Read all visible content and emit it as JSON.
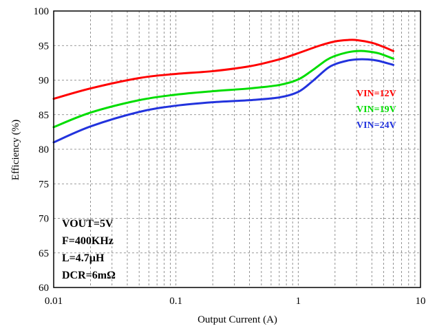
{
  "chart_data": {
    "type": "line",
    "xscale": "log",
    "xlim": [
      0.01,
      10
    ],
    "ylim": [
      60,
      100
    ],
    "xlabel": "Output Current (A)",
    "ylabel": "Efficiency (%)",
    "grid": true,
    "x_ticks": [
      "0.01",
      "0.1",
      "1",
      "10"
    ],
    "y_ticks": [
      "60",
      "65",
      "70",
      "75",
      "80",
      "85",
      "90",
      "95",
      "100"
    ],
    "series": [
      {
        "name": "VIN=12V",
        "color": "#ff0000",
        "x": [
          0.01,
          0.02,
          0.05,
          0.1,
          0.2,
          0.4,
          0.7,
          1.0,
          1.5,
          2.0,
          2.5,
          3.0,
          4.0,
          5.0,
          6.0
        ],
        "y": [
          87.3,
          88.8,
          90.3,
          90.9,
          91.3,
          92.0,
          93.0,
          93.9,
          95.0,
          95.6,
          95.8,
          95.8,
          95.4,
          94.8,
          94.2
        ]
      },
      {
        "name": "VIN=19V",
        "color": "#00dd00",
        "x": [
          0.01,
          0.02,
          0.05,
          0.1,
          0.2,
          0.4,
          0.7,
          1.0,
          1.3,
          1.7,
          2.0,
          2.5,
          3.0,
          3.5,
          4.5,
          6.0
        ],
        "y": [
          83.2,
          85.3,
          87.1,
          87.9,
          88.4,
          88.8,
          89.3,
          90.1,
          91.4,
          92.9,
          93.5,
          94.0,
          94.2,
          94.2,
          93.9,
          93.1
        ]
      },
      {
        "name": "VIN=24V",
        "color": "#2233dd",
        "x": [
          0.01,
          0.02,
          0.05,
          0.1,
          0.2,
          0.4,
          0.7,
          1.0,
          1.3,
          1.7,
          2.0,
          2.5,
          3.0,
          3.7,
          4.5,
          6.0
        ],
        "y": [
          81.0,
          83.3,
          85.4,
          86.3,
          86.8,
          87.1,
          87.5,
          88.3,
          89.8,
          91.6,
          92.3,
          92.8,
          93.0,
          93.0,
          92.8,
          92.2
        ]
      }
    ],
    "legend_position": "right-inside",
    "annotations": [
      "VOUT=5V",
      "F=400KHz",
      "L=4.7µH",
      "DCR=6mΩ"
    ]
  }
}
